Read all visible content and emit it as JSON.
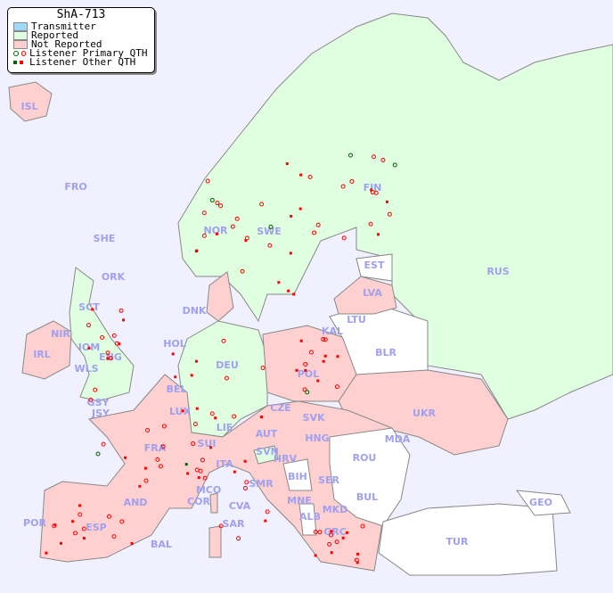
{
  "title": "ShA-713",
  "legend": [
    {
      "label": "Transmitter",
      "color": "#a0d8f8"
    },
    {
      "label": "Reported",
      "color": "#e0ffe0"
    },
    {
      "label": "Not Reported",
      "color": "#ffd0d0"
    },
    {
      "label": "Listener Primary QTH",
      "icon": "circle-marker"
    },
    {
      "label": "Listener Other QTH",
      "icon": "square-marker"
    }
  ],
  "colors": {
    "sea": "#f0f0ff",
    "reported": "#e0ffe0",
    "not_reported": "#ffd0d0",
    "no_data": "#ffffff",
    "marker_primary": "#ff0000",
    "marker_reported": "#006000"
  },
  "countries": [
    "ISL",
    "FRO",
    "SHE",
    "ORK",
    "NOR",
    "SWE",
    "FIN",
    "RUS",
    "EST",
    "LVA",
    "LTU",
    "KAL",
    "BLR",
    "DNK",
    "SCT",
    "NIR",
    "IRL",
    "IOM",
    "ENG",
    "WLS",
    "HOL",
    "DEU",
    "POL",
    "UKR",
    "BEL",
    "LUX",
    "GSY",
    "JSY",
    "CZE",
    "SVK",
    "LIE",
    "AUT",
    "HNG",
    "MDA",
    "FRA",
    "SUI",
    "SVN",
    "HRV",
    "ROU",
    "ITA",
    "SMR",
    "BIH",
    "SER",
    "MCO",
    "COR",
    "CVA",
    "MNE",
    "BUL",
    "GEO",
    "AND",
    "ALB",
    "MKD",
    "POR",
    "ESP",
    "SAR",
    "GRC",
    "TUR",
    "BAL"
  ]
}
